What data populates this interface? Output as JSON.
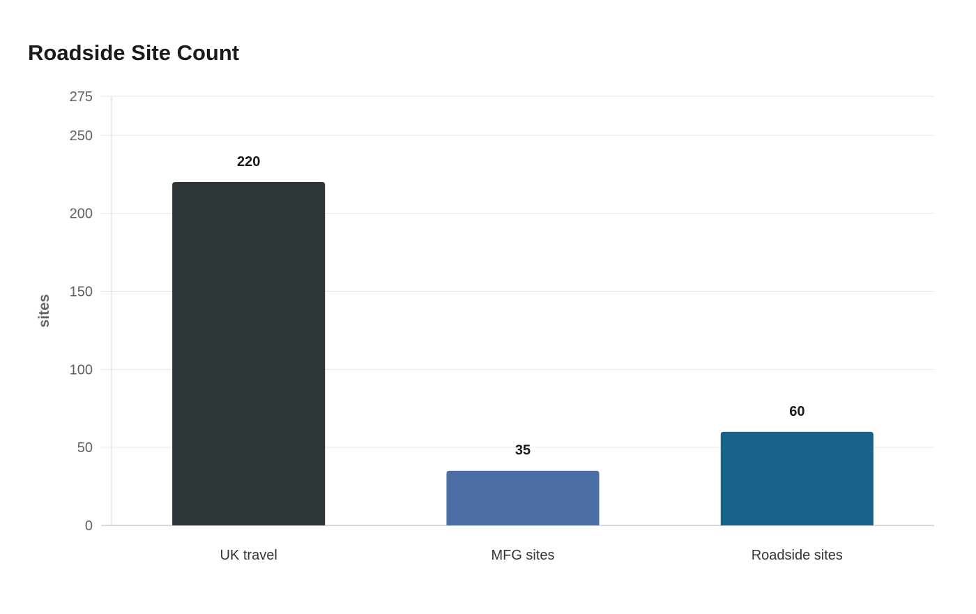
{
  "chart_data": {
    "type": "bar",
    "title": "Roadside Site Count",
    "xlabel": "",
    "ylabel": "sites",
    "categories": [
      "UK travel",
      "MFG sites",
      "Roadside sites"
    ],
    "values": [
      220,
      35,
      60
    ],
    "data_labels": [
      "220",
      "35",
      "60"
    ],
    "colors": [
      "#2e3538",
      "#4a6ea5",
      "#186289"
    ],
    "ylim": [
      0,
      275
    ],
    "yticks": [
      0,
      50,
      100,
      150,
      200,
      250,
      275
    ],
    "ytick_labels": [
      "0",
      "50",
      "100",
      "150",
      "200",
      "250",
      "275"
    ],
    "grid": true,
    "legend": "none"
  }
}
